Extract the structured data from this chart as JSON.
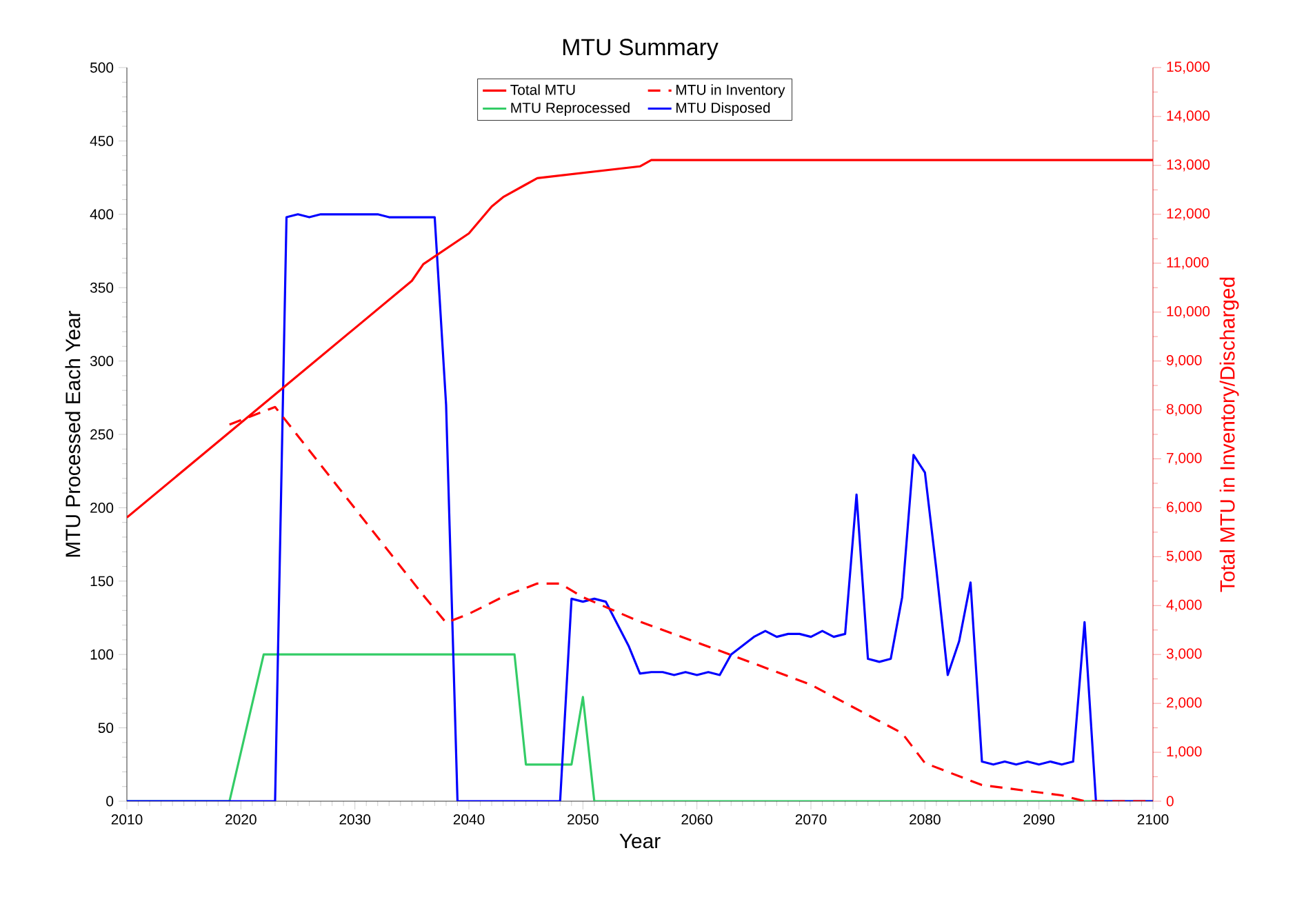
{
  "chart_data": {
    "type": "line",
    "title": "MTU Summary",
    "xlabel": "Year",
    "ylabel": "MTU Processed Each Year",
    "y2label": "Total MTU in Inventory/Discharged",
    "xlim": [
      2010,
      2100
    ],
    "xticks": [
      2010,
      2020,
      2030,
      2040,
      2050,
      2060,
      2070,
      2080,
      2090,
      2100
    ],
    "ylim": [
      0,
      500
    ],
    "yticks": [
      0,
      50,
      100,
      150,
      200,
      250,
      300,
      350,
      400,
      450,
      500
    ],
    "y2lim": [
      0,
      15000
    ],
    "y2ticks": [
      0,
      {
        "value": 1000,
        "label": "1,000"
      },
      {
        "value": 2000,
        "label": "2,000"
      },
      {
        "value": 3000,
        "label": "3,000"
      },
      {
        "value": 4000,
        "label": "4,000"
      },
      {
        "value": 5000,
        "label": "5,000"
      },
      {
        "value": 6000,
        "label": "6,000"
      },
      {
        "value": 7000,
        "label": "7,000"
      },
      {
        "value": 8000,
        "label": "8,000"
      },
      {
        "value": 9000,
        "label": "9,000"
      },
      {
        "value": 10000,
        "label": "10,000"
      },
      {
        "value": 11000,
        "label": "11,000"
      },
      {
        "value": 12000,
        "label": "12,000"
      },
      {
        "value": 13000,
        "label": "13,000"
      },
      {
        "value": 14000,
        "label": "14,000"
      },
      {
        "value": 15000,
        "label": "15,000"
      }
    ],
    "grid": false,
    "legend": "top",
    "marker": "none",
    "series": [
      {
        "name": "Total MTU",
        "color": "#ff0000",
        "axis": "y2",
        "line_style": "solid",
        "x": [
          2010,
          2035,
          2036,
          2040,
          2042,
          2043,
          2045,
          2046,
          2055,
          2056,
          2100
        ],
        "values": [
          5800,
          10640,
          10980,
          11610,
          12160,
          12350,
          12610,
          12740,
          12980,
          13110,
          13110
        ]
      },
      {
        "name": "MTU in Inventory",
        "color": "#ff0000",
        "axis": "y2",
        "line_style": "dashed",
        "x": [
          2019,
          2023,
          2036,
          2038,
          2040,
          2043,
          2046,
          2048,
          2050,
          2055,
          2063,
          2070,
          2078,
          2080,
          2085,
          2092,
          2094,
          2100
        ],
        "values": [
          7700,
          8060,
          4210,
          3650,
          3830,
          4180,
          4450,
          4450,
          4170,
          3670,
          2990,
          2380,
          1390,
          780,
          330,
          120,
          0,
          0
        ]
      },
      {
        "name": "MTU Reprocessed",
        "color": "#33cc66",
        "line_style": "solid",
        "x": [
          2010,
          2019,
          2022,
          2044,
          2045,
          2049,
          2050,
          2051,
          2100
        ],
        "values": [
          0,
          0,
          100,
          100,
          25,
          25,
          71,
          0,
          0
        ]
      },
      {
        "name": "MTU Disposed",
        "color": "#0000ff",
        "line_style": "solid",
        "x": [
          2010,
          2023,
          2024,
          2025,
          2026,
          2027,
          2028,
          2029,
          2030,
          2031,
          2032,
          2033,
          2034,
          2035,
          2036,
          2037,
          2038,
          2039,
          2048,
          2049,
          2050,
          2051,
          2052,
          2054,
          2055,
          2056,
          2057,
          2058,
          2059,
          2060,
          2061,
          2062,
          2063,
          2064,
          2065,
          2066,
          2067,
          2068,
          2069,
          2070,
          2071,
          2072,
          2073,
          2074,
          2075,
          2076,
          2077,
          2078,
          2079,
          2080,
          2081,
          2082,
          2083,
          2084,
          2085,
          2086,
          2087,
          2088,
          2089,
          2090,
          2091,
          2092,
          2093,
          2094,
          2095,
          2100
        ],
        "values": [
          0,
          0,
          398,
          400,
          398,
          400,
          400,
          400,
          400,
          400,
          400,
          398,
          398,
          398,
          398,
          398,
          270,
          0,
          0,
          138,
          136,
          138,
          136,
          106,
          87,
          88,
          88,
          86,
          88,
          86,
          88,
          86,
          100,
          106,
          112,
          116,
          112,
          114,
          114,
          112,
          116,
          112,
          114,
          209,
          97,
          95,
          97,
          139,
          236,
          224,
          158,
          86,
          109,
          149,
          27,
          25,
          27,
          25,
          27,
          25,
          27,
          25,
          27,
          122,
          0,
          0
        ]
      }
    ]
  }
}
